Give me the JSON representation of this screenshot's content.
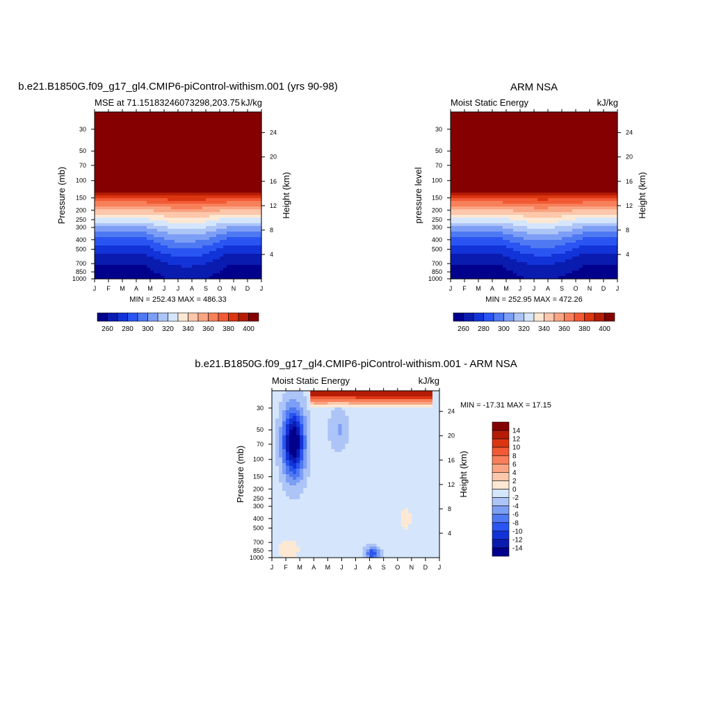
{
  "chart_data": [
    {
      "type": "heatmap",
      "title": "b.e21.B1850G.f09_g17_gl4.CMIP6-piControl-withism.001 (yrs 90-98)",
      "subtitle_left": "MSE at 71.15183246073298,203.75",
      "subtitle_right": "kJ/kg",
      "ylabel": "Pressure (mb)",
      "ylabel_right": "Height (km)",
      "stats": "MIN = 252.43 MAX = 486.33",
      "months": [
        "J",
        "F",
        "M",
        "A",
        "M",
        "J",
        "J",
        "A",
        "S",
        "O",
        "N",
        "D",
        "J"
      ],
      "pressure_ticks": [
        30,
        50,
        70,
        100,
        150,
        200,
        250,
        300,
        400,
        500,
        700,
        850,
        1000
      ],
      "pressure_range": [
        20,
        1000
      ],
      "height_ticks": [
        4,
        8,
        12,
        16,
        20,
        24
      ],
      "colorbar": {
        "ticks": [
          260,
          280,
          300,
          320,
          340,
          360,
          380,
          400
        ],
        "levels": [
          260,
          270,
          280,
          290,
          300,
          310,
          320,
          330,
          340,
          350,
          360,
          370,
          380,
          390,
          400
        ]
      },
      "approx_values": {
        "surface_min_kJkg": 252.43,
        "top_max_kJkg": 486.33
      }
    },
    {
      "type": "heatmap",
      "title": "ARM NSA",
      "subtitle_left": "Moist Static Energy",
      "subtitle_right": "kJ/kg",
      "ylabel": "pressure level",
      "ylabel_right": "Height (km)",
      "stats": "MIN = 252.95 MAX = 472.26",
      "months": [
        "J",
        "F",
        "M",
        "A",
        "M",
        "J",
        "J",
        "A",
        "S",
        "O",
        "N",
        "D",
        "J"
      ],
      "pressure_ticks": [
        30,
        50,
        70,
        100,
        150,
        200,
        250,
        300,
        400,
        500,
        700,
        850,
        1000
      ],
      "pressure_range": [
        20,
        1000
      ],
      "height_ticks": [
        4,
        8,
        12,
        16,
        20,
        24
      ],
      "colorbar": {
        "ticks": [
          260,
          280,
          300,
          320,
          340,
          360,
          380,
          400
        ],
        "levels": [
          260,
          270,
          280,
          290,
          300,
          310,
          320,
          330,
          340,
          350,
          360,
          370,
          380,
          390,
          400
        ]
      }
    },
    {
      "type": "heatmap",
      "title": "b.e21.B1850G.f09_g17_gl4.CMIP6-piControl-withism.001 - ARM NSA",
      "subtitle_left": "Moist Static Energy",
      "subtitle_right": "kJ/kg",
      "ylabel": "Pressure (mb)",
      "ylabel_right": "Height (km)",
      "stats": "MIN = -17.31 MAX =  17.15",
      "months": [
        "J",
        "F",
        "M",
        "A",
        "M",
        "J",
        "J",
        "A",
        "S",
        "O",
        "N",
        "D",
        "J"
      ],
      "pressure_ticks": [
        30,
        50,
        70,
        100,
        150,
        200,
        250,
        300,
        400,
        500,
        700,
        850,
        1000
      ],
      "pressure_range": [
        20,
        1000
      ],
      "height_ticks": [
        4,
        8,
        12,
        16,
        20,
        24
      ],
      "colorbar": {
        "ticks": [
          14,
          12,
          10,
          8,
          6,
          4,
          2,
          0,
          -2,
          -4,
          -6,
          -8,
          -10,
          -12,
          -14
        ],
        "levels": [
          -14,
          -12,
          -10,
          -8,
          -6,
          -4,
          -2,
          0,
          2,
          4,
          6,
          8,
          10,
          12,
          14
        ]
      }
    }
  ],
  "colors": {
    "abs_palette": [
      "#00008c",
      "#0a1bb0",
      "#1233d8",
      "#2a55f2",
      "#4f79f2",
      "#7d9ef5",
      "#adc4f7",
      "#d5e6fc",
      "#fde8d4",
      "#fcc7ab",
      "#f9a583",
      "#f7805a",
      "#f25a35",
      "#db3512",
      "#b51c05",
      "#850000"
    ],
    "diff_palette": [
      "#00008c",
      "#0a1bb0",
      "#1233d8",
      "#2a55f2",
      "#4f79f2",
      "#7d9ef5",
      "#adc4f7",
      "#d5e6fc",
      "#fde8d4",
      "#fcc7ab",
      "#f9a583",
      "#f7805a",
      "#f25a35",
      "#db3512",
      "#b51c05",
      "#850000"
    ]
  }
}
